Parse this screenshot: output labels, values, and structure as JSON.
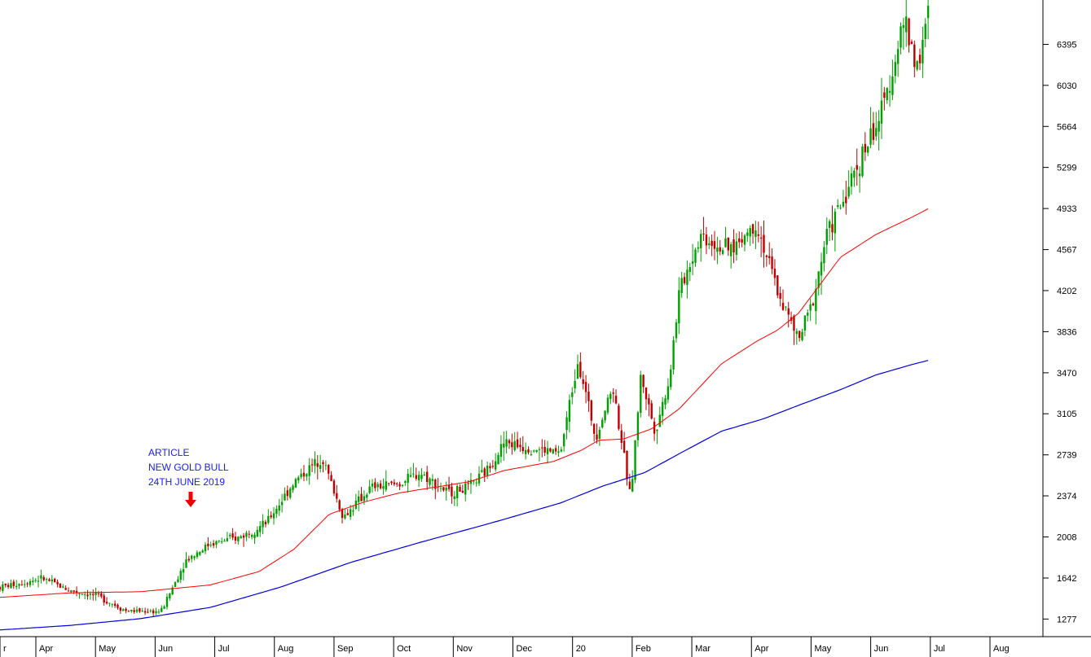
{
  "chart_data": {
    "type": "candlestick",
    "title": "",
    "xlabel": "",
    "ylabel": "",
    "y_ticks": [
      1277,
      1642,
      2008,
      2374,
      2739,
      3105,
      3470,
      3836,
      4202,
      4567,
      4933,
      5299,
      5664,
      6030,
      6395
    ],
    "ylim": [
      1120,
      6790
    ],
    "x_labels": [
      "r",
      "Apr",
      "May",
      "Jun",
      "Jul",
      "Aug",
      "Sep",
      "Oct",
      "Nov",
      "Dec",
      "20",
      "Feb",
      "Mar",
      "Apr",
      "May",
      "Jun",
      "Jul",
      "Aug"
    ],
    "grid": false,
    "colors": {
      "up": "#00a000",
      "down": "#c00000",
      "ma_short": "#ff0000",
      "ma_long": "#0000dd",
      "annotation": "#1a1aff",
      "arrow": "#ee0000"
    },
    "price_path": [
      [
        0,
        1560
      ],
      [
        0.06,
        1640
      ],
      [
        0.1,
        1530
      ],
      [
        0.14,
        1480
      ],
      [
        0.18,
        1350
      ],
      [
        0.23,
        1345
      ],
      [
        0.265,
        1800
      ],
      [
        0.3,
        1950
      ],
      [
        0.34,
        2000
      ],
      [
        0.38,
        2130
      ],
      [
        0.42,
        2500
      ],
      [
        0.46,
        2720
      ],
      [
        0.49,
        2180
      ],
      [
        0.53,
        2450
      ],
      [
        0.57,
        2480
      ],
      [
        0.6,
        2580
      ],
      [
        0.64,
        2400
      ],
      [
        0.67,
        2450
      ],
      [
        0.695,
        2600
      ],
      [
        0.72,
        2850
      ],
      [
        0.76,
        2800
      ],
      [
        0.8,
        2750
      ],
      [
        0.825,
        3600
      ],
      [
        0.85,
        2900
      ],
      [
        0.875,
        3350
      ],
      [
        0.9,
        2350
      ],
      [
        0.915,
        3450
      ],
      [
        0.935,
        2950
      ],
      [
        0.955,
        3400
      ],
      [
        0.97,
        4200
      ],
      [
        1.0,
        4700
      ],
      [
        1.04,
        4550
      ],
      [
        1.08,
        4800
      ],
      [
        1.11,
        4200
      ],
      [
        1.14,
        3750
      ],
      [
        1.16,
        4100
      ],
      [
        1.18,
        4700
      ],
      [
        1.2,
        4950
      ],
      [
        1.23,
        5400
      ],
      [
        1.26,
        5800
      ],
      [
        1.29,
        6600
      ],
      [
        1.31,
        6200
      ],
      [
        1.325,
        6650
      ]
    ],
    "ma_short": [
      [
        0,
        1470
      ],
      [
        0.1,
        1510
      ],
      [
        0.2,
        1520
      ],
      [
        0.3,
        1580
      ],
      [
        0.37,
        1700
      ],
      [
        0.42,
        1900
      ],
      [
        0.47,
        2210
      ],
      [
        0.52,
        2320
      ],
      [
        0.57,
        2400
      ],
      [
        0.62,
        2450
      ],
      [
        0.67,
        2500
      ],
      [
        0.72,
        2600
      ],
      [
        0.79,
        2680
      ],
      [
        0.83,
        2780
      ],
      [
        0.855,
        2870
      ],
      [
        0.89,
        2880
      ],
      [
        0.93,
        2970
      ],
      [
        0.97,
        3150
      ],
      [
        1.03,
        3550
      ],
      [
        1.08,
        3750
      ],
      [
        1.11,
        3850
      ],
      [
        1.14,
        4000
      ],
      [
        1.17,
        4250
      ],
      [
        1.2,
        4500
      ],
      [
        1.25,
        4700
      ],
      [
        1.3,
        4850
      ],
      [
        1.325,
        4930
      ]
    ],
    "ma_long": [
      [
        0,
        1180
      ],
      [
        0.1,
        1220
      ],
      [
        0.2,
        1280
      ],
      [
        0.3,
        1380
      ],
      [
        0.4,
        1560
      ],
      [
        0.5,
        1780
      ],
      [
        0.6,
        1960
      ],
      [
        0.7,
        2130
      ],
      [
        0.8,
        2310
      ],
      [
        0.86,
        2460
      ],
      [
        0.92,
        2580
      ],
      [
        0.97,
        2750
      ],
      [
        1.03,
        2950
      ],
      [
        1.09,
        3060
      ],
      [
        1.14,
        3180
      ],
      [
        1.2,
        3320
      ],
      [
        1.25,
        3450
      ],
      [
        1.3,
        3540
      ],
      [
        1.325,
        3580
      ]
    ],
    "annotation": {
      "lines": [
        "ARTICLE",
        "NEW GOLD BULL",
        "24TH JUNE 2019"
      ],
      "arrow_at": 0.3
    }
  }
}
